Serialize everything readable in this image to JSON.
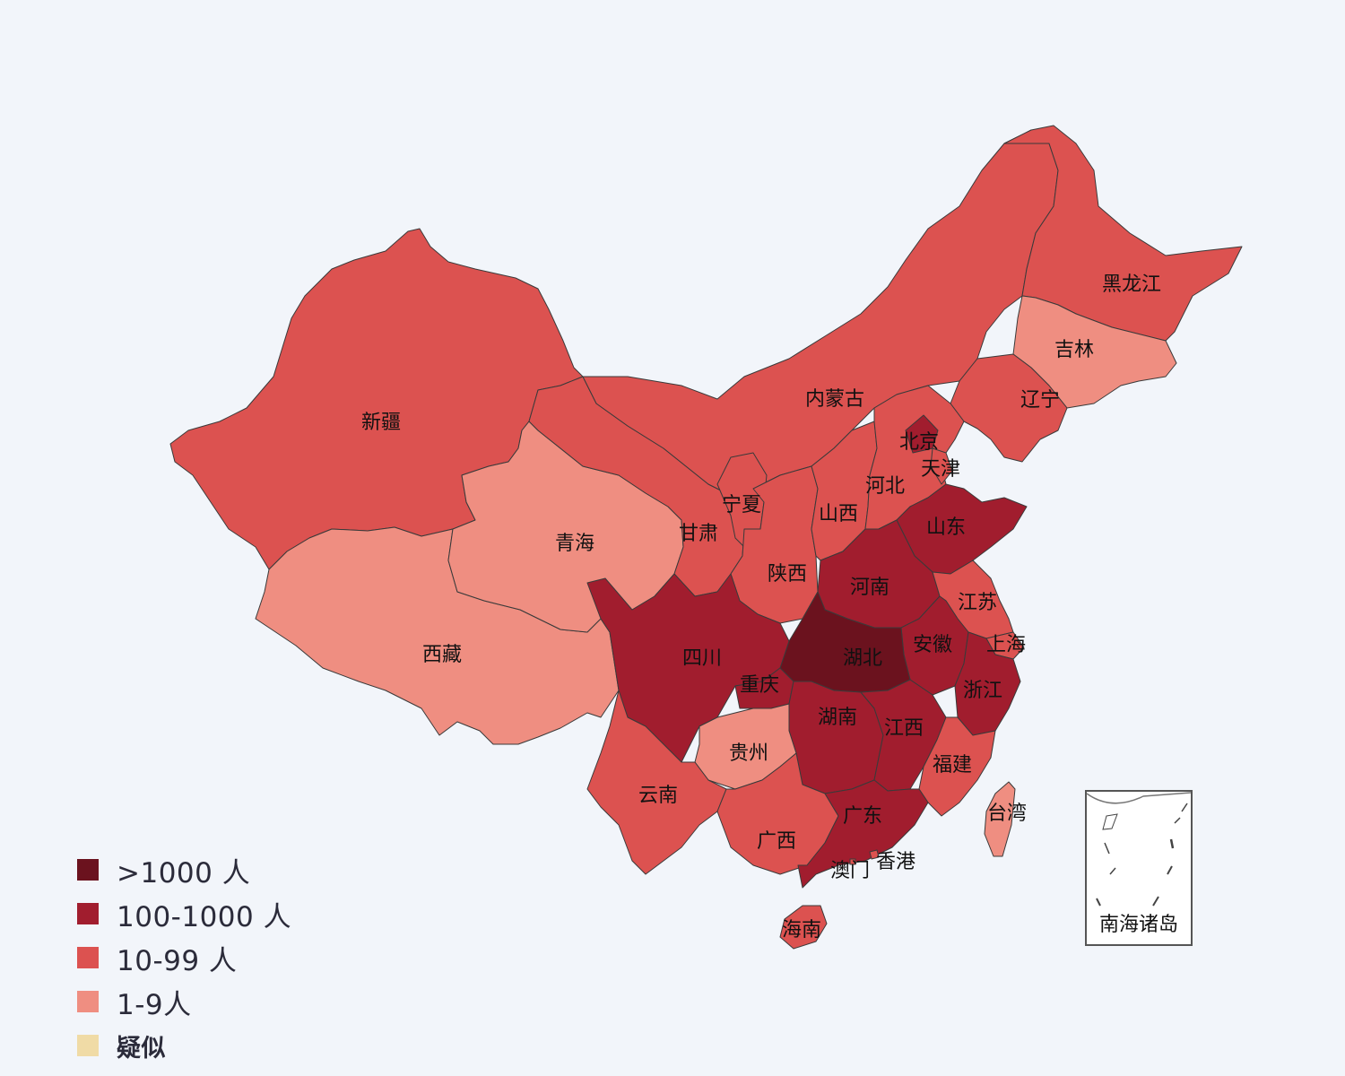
{
  "legend": {
    "items": [
      {
        "label": ">1000 人",
        "color": "#6b121e"
      },
      {
        "label": "100-1000 人",
        "color": "#a11d2e"
      },
      {
        "label": "10-99 人",
        "color": "#dc5250"
      },
      {
        "label": "1-9人",
        "color": "#ef8e81"
      },
      {
        "label": "疑似",
        "color": "#f0dba6"
      }
    ]
  },
  "inset": {
    "label": "南海诸岛",
    "fill": "#ffffff",
    "stroke": "#555555"
  },
  "provinces": [
    {
      "name": "新疆",
      "category": "10-99 人"
    },
    {
      "name": "西藏",
      "category": "1-9人"
    },
    {
      "name": "青海",
      "category": "1-9人"
    },
    {
      "name": "甘肃",
      "category": "10-99 人"
    },
    {
      "name": "内蒙古",
      "category": "10-99 人"
    },
    {
      "name": "黑龙江",
      "category": "10-99 人"
    },
    {
      "name": "吉林",
      "category": "1-9人"
    },
    {
      "name": "辽宁",
      "category": "10-99 人"
    },
    {
      "name": "宁夏",
      "category": "10-99 人"
    },
    {
      "name": "陕西",
      "category": "10-99 人"
    },
    {
      "name": "山西",
      "category": "10-99 人"
    },
    {
      "name": "河北",
      "category": "10-99 人"
    },
    {
      "name": "北京",
      "category": "100-1000 人"
    },
    {
      "name": "天津",
      "category": "10-99 人"
    },
    {
      "name": "山东",
      "category": "100-1000 人"
    },
    {
      "name": "河南",
      "category": "100-1000 人"
    },
    {
      "name": "江苏",
      "category": "10-99 人"
    },
    {
      "name": "上海",
      "category": "10-99 人"
    },
    {
      "name": "安徽",
      "category": "100-1000 人"
    },
    {
      "name": "浙江",
      "category": "100-1000 人"
    },
    {
      "name": "湖北",
      "category": ">1000 人"
    },
    {
      "name": "四川",
      "category": "100-1000 人"
    },
    {
      "name": "重庆",
      "category": "100-1000 人"
    },
    {
      "name": "湖南",
      "category": "100-1000 人"
    },
    {
      "name": "江西",
      "category": "100-1000 人"
    },
    {
      "name": "贵州",
      "category": "1-9人"
    },
    {
      "name": "云南",
      "category": "10-99 人"
    },
    {
      "name": "广西",
      "category": "10-99 人"
    },
    {
      "name": "广东",
      "category": "100-1000 人"
    },
    {
      "name": "福建",
      "category": "10-99 人"
    },
    {
      "name": "台湾",
      "category": "1-9人"
    },
    {
      "name": "海南",
      "category": "10-99 人"
    },
    {
      "name": "香港",
      "category": "10-99 人"
    },
    {
      "name": "澳门",
      "category": "10-99 人"
    }
  ]
}
